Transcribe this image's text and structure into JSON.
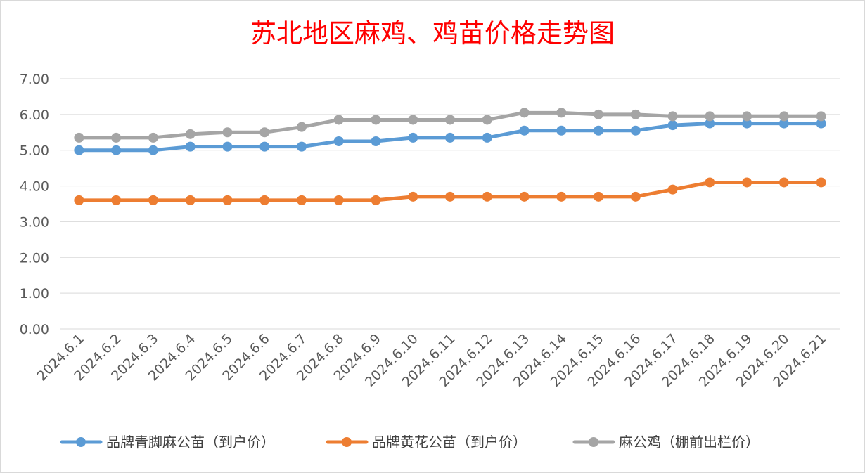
{
  "chart_data": {
    "type": "line",
    "title": "苏北地区麻鸡、鸡苗价格走势图",
    "xlabel": "",
    "ylabel": "",
    "ylim": [
      0,
      7
    ],
    "y_ticks": [
      "0.00",
      "1.00",
      "2.00",
      "3.00",
      "4.00",
      "5.00",
      "6.00",
      "7.00"
    ],
    "grid": true,
    "legend_position": "bottom",
    "categories": [
      "2024.6.1",
      "2024.6.2",
      "2024.6.3",
      "2024.6.4",
      "2024.6.5",
      "2024.6.6",
      "2024.6.7",
      "2024.6.8",
      "2024.6.9",
      "2024.6.10",
      "2024.6.11",
      "2024.6.12",
      "2024.6.13",
      "2024.6.14",
      "2024.6.15",
      "2024.6.16",
      "2024.6.17",
      "2024.6.18",
      "2024.6.19",
      "2024.6.20",
      "2024.6.21"
    ],
    "series": [
      {
        "name": "品牌青脚麻公苗（到户价）",
        "color": "#5b9bd5",
        "values": [
          5.0,
          5.0,
          5.0,
          5.1,
          5.1,
          5.1,
          5.1,
          5.25,
          5.25,
          5.35,
          5.35,
          5.35,
          5.55,
          5.55,
          5.55,
          5.55,
          5.7,
          5.75,
          5.75,
          5.75,
          5.75
        ]
      },
      {
        "name": "品牌黄花公苗（到户价）",
        "color": "#ed7d31",
        "values": [
          3.6,
          3.6,
          3.6,
          3.6,
          3.6,
          3.6,
          3.6,
          3.6,
          3.6,
          3.7,
          3.7,
          3.7,
          3.7,
          3.7,
          3.7,
          3.7,
          3.9,
          4.1,
          4.1,
          4.1,
          4.1
        ]
      },
      {
        "name": "麻公鸡（棚前出栏价）",
        "color": "#a5a5a5",
        "values": [
          5.35,
          5.35,
          5.35,
          5.45,
          5.5,
          5.5,
          5.65,
          5.85,
          5.85,
          5.85,
          5.85,
          5.85,
          6.05,
          6.05,
          6.0,
          6.0,
          5.95,
          5.95,
          5.95,
          5.95,
          5.95
        ]
      }
    ],
    "title_color": "#ff0000",
    "grid_color": "#d9d9d9"
  }
}
